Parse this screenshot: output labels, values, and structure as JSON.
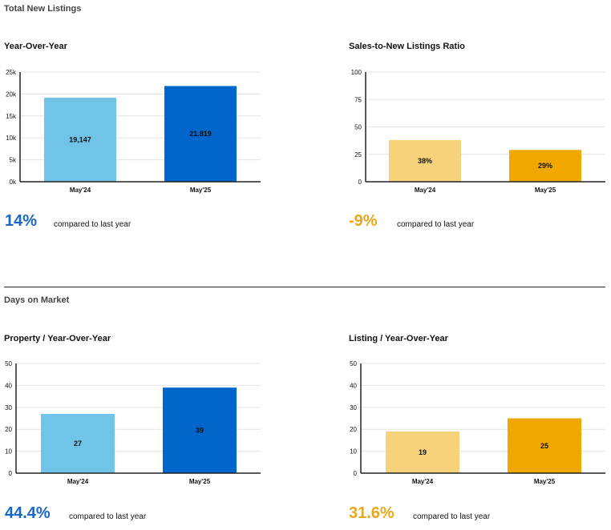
{
  "sections": {
    "listings": "Total New Listings",
    "dom": "Days on Market"
  },
  "compare_text": "compared to last year",
  "colors": {
    "blue_light": "#70c4e8",
    "blue_dark": "#0066cc",
    "gold_light": "#f6d27a",
    "gold_dark": "#f0a800",
    "blue_text": "#1a66c4",
    "gold_text": "#e8a81a"
  },
  "chart_data": [
    {
      "id": "c1",
      "type": "bar",
      "title": "Year-Over-Year",
      "categories": [
        "May'24",
        "May'25"
      ],
      "values": [
        19147,
        21819
      ],
      "labels": [
        "19,147",
        "21,819"
      ],
      "ylim": [
        0,
        25000
      ],
      "yticks": [
        0,
        5000,
        10000,
        15000,
        20000,
        25000
      ],
      "yticklabels": [
        "0k",
        "5k",
        "10k",
        "15k",
        "20k",
        "25k"
      ],
      "colors": [
        "#70c4e8",
        "#0066cc"
      ],
      "change": "14%",
      "change_color": "#1a66c4"
    },
    {
      "id": "c2",
      "type": "bar",
      "title": "Sales-to-New Listings Ratio",
      "categories": [
        "May'24",
        "May'25"
      ],
      "values": [
        38,
        29
      ],
      "labels": [
        "38%",
        "29%"
      ],
      "ylim": [
        0,
        100
      ],
      "yticks": [
        0,
        25,
        50,
        75,
        100
      ],
      "yticklabels": [
        "0",
        "25",
        "50",
        "75",
        "100"
      ],
      "colors": [
        "#f6d27a",
        "#f0a800"
      ],
      "change": "-9%",
      "change_color": "#e8a81a"
    },
    {
      "id": "c3",
      "type": "bar",
      "title": "Property / Year-Over-Year",
      "categories": [
        "May'24",
        "May'25"
      ],
      "values": [
        27,
        39
      ],
      "labels": [
        "27",
        "39"
      ],
      "ylim": [
        0,
        50
      ],
      "yticks": [
        0,
        10,
        20,
        30,
        40,
        50
      ],
      "yticklabels": [
        "0",
        "10",
        "20",
        "30",
        "40",
        "50"
      ],
      "colors": [
        "#70c4e8",
        "#0066cc"
      ],
      "change": "44.4%",
      "change_color": "#1a66c4"
    },
    {
      "id": "c4",
      "type": "bar",
      "title": "Listing / Year-Over-Year",
      "categories": [
        "May'24",
        "May'25"
      ],
      "values": [
        19,
        25
      ],
      "labels": [
        "19",
        "25"
      ],
      "ylim": [
        0,
        50
      ],
      "yticks": [
        0,
        10,
        20,
        30,
        40,
        50
      ],
      "yticklabels": [
        "0",
        "10",
        "20",
        "30",
        "40",
        "50"
      ],
      "colors": [
        "#f6d27a",
        "#f0a800"
      ],
      "change": "31.6%",
      "change_color": "#e8a81a"
    }
  ]
}
